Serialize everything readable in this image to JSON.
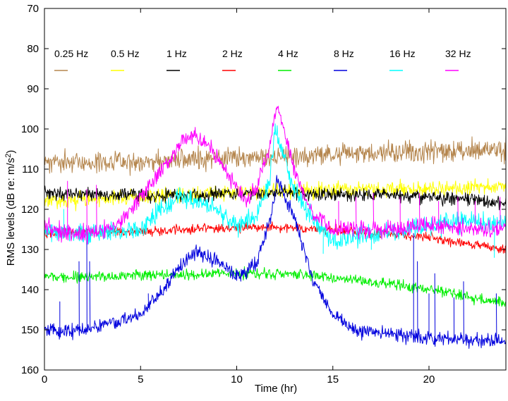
{
  "chart_data": {
    "type": "line",
    "xlabel": "Time (hr)",
    "ylabel_main": "RMS levels (dB re: m/s",
    "ylabel_sup": "2",
    "ylabel_end": ")",
    "xlim": [
      0,
      24
    ],
    "ylim": [
      70,
      160
    ],
    "y_inverted": true,
    "x_ticks": [
      0,
      5,
      10,
      15,
      20
    ],
    "y_ticks": [
      70,
      80,
      90,
      100,
      110,
      120,
      130,
      140,
      150,
      160
    ],
    "x_tick_labels": [
      "0",
      "5",
      "10",
      "15",
      "20"
    ],
    "y_tick_labels": [
      "70",
      "80",
      "90",
      "100",
      "110",
      "120",
      "130",
      "140",
      "150",
      "160"
    ],
    "grid": false,
    "legend_placement": "top, horizontal row",
    "series": [
      {
        "name": "0.25 Hz",
        "color": "#b5864e",
        "noise": 1.6,
        "seed": 11,
        "points": [
          [
            0,
            108.5
          ],
          [
            4,
            108
          ],
          [
            8,
            107.5
          ],
          [
            12,
            107
          ],
          [
            16,
            106
          ],
          [
            20,
            105.5
          ],
          [
            24,
            105
          ]
        ],
        "spikes": []
      },
      {
        "name": "0.5 Hz",
        "color": "#ffff00",
        "noise": 1.2,
        "seed": 23,
        "points": [
          [
            0,
            118
          ],
          [
            3,
            117.5
          ],
          [
            6,
            116.5
          ],
          [
            9,
            116
          ],
          [
            12,
            115.5
          ],
          [
            16,
            115
          ],
          [
            20,
            115
          ],
          [
            24,
            114.5
          ]
        ],
        "spikes": []
      },
      {
        "name": "1 Hz",
        "color": "#000000",
        "noise": 1.0,
        "seed": 37,
        "points": [
          [
            0,
            116
          ],
          [
            6,
            116.5
          ],
          [
            12,
            116
          ],
          [
            18,
            116.5
          ],
          [
            22,
            117.5
          ],
          [
            24,
            118.5
          ]
        ],
        "spikes": []
      },
      {
        "name": "2 Hz",
        "color": "#ff0000",
        "noise": 0.7,
        "seed": 41,
        "points": [
          [
            0,
            126
          ],
          [
            5,
            125.5
          ],
          [
            10,
            124.5
          ],
          [
            13,
            124.5
          ],
          [
            16,
            125.5
          ],
          [
            20,
            127
          ],
          [
            24,
            130
          ]
        ],
        "spikes": []
      },
      {
        "name": "4 Hz",
        "color": "#00ee00",
        "noise": 0.8,
        "seed": 53,
        "points": [
          [
            0,
            137
          ],
          [
            5,
            136.5
          ],
          [
            10,
            136
          ],
          [
            13,
            136
          ],
          [
            16,
            137.5
          ],
          [
            20,
            140
          ],
          [
            24,
            143.5
          ]
        ],
        "spikes": []
      },
      {
        "name": "8 Hz",
        "color": "#0000dd",
        "noise": 1.1,
        "seed": 67,
        "points": [
          [
            0,
            150.5
          ],
          [
            2,
            150
          ],
          [
            4,
            148
          ],
          [
            5,
            146
          ],
          [
            6,
            141
          ],
          [
            7,
            134
          ],
          [
            8,
            131
          ],
          [
            9,
            133
          ],
          [
            10,
            137
          ],
          [
            11,
            134
          ],
          [
            11.8,
            122
          ],
          [
            12.1,
            112
          ],
          [
            12.5,
            117
          ],
          [
            13,
            122
          ],
          [
            14,
            138
          ],
          [
            15,
            146
          ],
          [
            16,
            150
          ],
          [
            18,
            151
          ],
          [
            20,
            152
          ],
          [
            24,
            153
          ]
        ],
        "spikes": [
          [
            0.8,
            143
          ],
          [
            1.8,
            133
          ],
          [
            2.2,
            124
          ],
          [
            2.35,
            133
          ],
          [
            5.4,
            141
          ],
          [
            19.2,
            126
          ],
          [
            19.4,
            133
          ],
          [
            20.0,
            141
          ],
          [
            20.3,
            136
          ],
          [
            21.3,
            142
          ],
          [
            21.8,
            138
          ],
          [
            23.5,
            141
          ]
        ]
      },
      {
        "name": "16 Hz",
        "color": "#00ffff",
        "noise": 1.5,
        "seed": 79,
        "points": [
          [
            0,
            126
          ],
          [
            3,
            126
          ],
          [
            5,
            125
          ],
          [
            6,
            120
          ],
          [
            7,
            117
          ],
          [
            8,
            118
          ],
          [
            9,
            120
          ],
          [
            10,
            124
          ],
          [
            11,
            122
          ],
          [
            11.7,
            113
          ],
          [
            12,
            100
          ],
          [
            12.4,
            106
          ],
          [
            13,
            115
          ],
          [
            14,
            123
          ],
          [
            15,
            128
          ],
          [
            16,
            127
          ],
          [
            18,
            126
          ],
          [
            20,
            124
          ],
          [
            22,
            123
          ],
          [
            24,
            124
          ]
        ],
        "spikes": [
          [
            1,
            120
          ],
          [
            14.5,
            131
          ],
          [
            17,
            130
          ],
          [
            23.4,
            132
          ]
        ]
      },
      {
        "name": "32 Hz",
        "color": "#ff00ff",
        "noise": 1.3,
        "seed": 97,
        "points": [
          [
            0,
            125
          ],
          [
            2,
            126
          ],
          [
            3,
            125
          ],
          [
            4,
            123
          ],
          [
            5,
            117
          ],
          [
            6,
            111
          ],
          [
            7,
            104
          ],
          [
            7.8,
            101
          ],
          [
            8.5,
            104
          ],
          [
            9.5,
            111
          ],
          [
            10.5,
            118
          ],
          [
            11,
            115
          ],
          [
            11.7,
            104
          ],
          [
            12.1,
            94
          ],
          [
            12.6,
            103
          ],
          [
            13.2,
            113
          ],
          [
            14,
            121
          ],
          [
            15,
            125
          ],
          [
            16,
            125
          ],
          [
            18,
            125
          ],
          [
            20,
            124
          ],
          [
            22,
            125
          ],
          [
            24,
            125
          ]
        ],
        "spikes": [
          [
            1.2,
            113
          ],
          [
            2.2,
            115
          ],
          [
            2.7,
            114
          ],
          [
            15.3,
            118
          ],
          [
            16.2,
            117
          ],
          [
            17.1,
            116
          ],
          [
            18.5,
            117
          ],
          [
            19.5,
            116
          ],
          [
            20.5,
            118
          ],
          [
            21.5,
            117
          ],
          [
            22.4,
            118
          ],
          [
            23.7,
            117
          ]
        ]
      }
    ]
  }
}
